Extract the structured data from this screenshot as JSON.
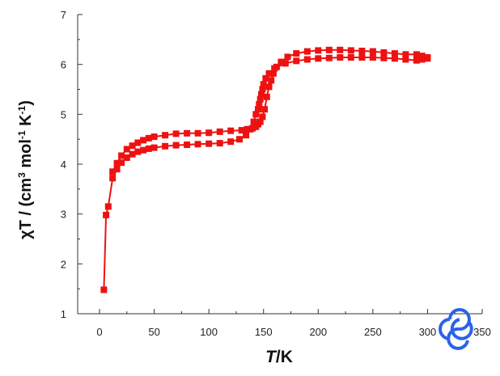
{
  "chart_data": {
    "type": "scatter",
    "x_label_italic": "T",
    "x_label_rest": "/K",
    "y_label_parts": [
      "χT / (cm",
      "3",
      " mol",
      "-1",
      " K",
      "-1",
      ")"
    ],
    "xlim": [
      -20,
      350
    ],
    "ylim": [
      1,
      7
    ],
    "x_ticks": [
      0,
      50,
      100,
      150,
      200,
      250,
      300,
      350
    ],
    "y_ticks": [
      1,
      2,
      3,
      4,
      5,
      6,
      7
    ],
    "grid": false,
    "legend": "none",
    "series": [
      {
        "color": "#ee1111",
        "marker": "square",
        "line": true,
        "x": [
          4,
          6,
          8,
          12,
          16,
          20,
          25,
          30,
          35,
          40,
          45,
          50,
          60,
          70,
          80,
          90,
          100,
          110,
          120,
          128,
          134,
          138,
          141,
          143,
          145,
          146,
          147,
          148,
          149,
          150,
          152,
          155,
          160,
          170,
          180,
          190,
          200,
          210,
          220,
          230,
          240,
          250,
          260,
          270,
          280,
          290,
          295,
          300
        ],
        "y": [
          1.48,
          2.98,
          3.15,
          3.72,
          3.9,
          4.03,
          4.13,
          4.2,
          4.25,
          4.28,
          4.31,
          4.33,
          4.36,
          4.38,
          4.39,
          4.4,
          4.41,
          4.42,
          4.45,
          4.5,
          4.58,
          4.7,
          4.85,
          5.0,
          5.1,
          5.2,
          5.3,
          5.4,
          5.5,
          5.6,
          5.72,
          5.82,
          5.92,
          6.02,
          6.07,
          6.1,
          6.12,
          6.13,
          6.14,
          6.14,
          6.14,
          6.14,
          6.13,
          6.12,
          6.1,
          6.08,
          6.1,
          6.12
        ]
      },
      {
        "color": "#ee1111",
        "marker": "square",
        "line": true,
        "x": [
          300,
          295,
          290,
          280,
          270,
          260,
          250,
          240,
          230,
          220,
          210,
          200,
          190,
          180,
          172,
          166,
          162,
          159,
          157,
          155,
          153,
          151,
          149,
          147,
          145,
          143,
          140,
          135,
          130,
          120,
          110,
          100,
          90,
          80,
          70,
          60,
          50,
          45,
          40,
          35,
          30,
          25,
          20,
          16,
          12
        ],
        "y": [
          6.14,
          6.17,
          6.2,
          6.2,
          6.22,
          6.24,
          6.26,
          6.27,
          6.28,
          6.29,
          6.29,
          6.28,
          6.26,
          6.22,
          6.15,
          6.05,
          5.95,
          5.82,
          5.68,
          5.55,
          5.35,
          5.1,
          4.95,
          4.85,
          4.8,
          4.75,
          4.72,
          4.7,
          4.68,
          4.67,
          4.65,
          4.63,
          4.62,
          4.62,
          4.61,
          4.58,
          4.55,
          4.52,
          4.48,
          4.43,
          4.37,
          4.3,
          4.17,
          4.02,
          3.85
        ]
      }
    ]
  },
  "watermark_icon": "circular-arrows-logo-icon"
}
